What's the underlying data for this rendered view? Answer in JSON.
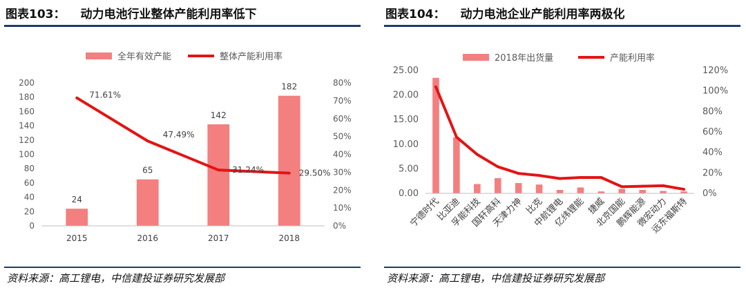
{
  "left_panel": {
    "fig_num": "图表103：",
    "fig_title": "动力电池行业整体产能利用率低下",
    "source": "资料来源：高工锂电，中信建投证券研究发展部"
  },
  "right_panel": {
    "fig_num": "图表104：",
    "fig_title": "动力电池企业产能利用率两极化",
    "source": "资料来源：高工锂电，中信建投证券研究发展部"
  },
  "colors": {
    "bar": "#f47f7f",
    "line": "#e31414",
    "axis": "#bfbfbf",
    "rule": "#1d3a6b"
  },
  "chart_data": [
    {
      "type": "bar",
      "categories": [
        "2015",
        "2016",
        "2017",
        "2018"
      ],
      "series": [
        {
          "name": "全年有效产能",
          "type": "bar",
          "axis": "left",
          "values": [
            24,
            65,
            142,
            182
          ],
          "labels": [
            "24",
            "65",
            "142",
            "182"
          ]
        },
        {
          "name": "整体产能利用率",
          "type": "line",
          "axis": "right",
          "values": [
            71.61,
            47.49,
            31.24,
            29.5
          ],
          "labels": [
            "71.61%",
            "47.49%",
            "31.24%",
            "29.50%"
          ]
        }
      ],
      "y_left": {
        "min": 0,
        "max": 200,
        "ticks": [
          "0",
          "20",
          "40",
          "60",
          "80",
          "100",
          "120",
          "140",
          "160",
          "180",
          "200"
        ]
      },
      "y_right": {
        "min": 0,
        "max": 80,
        "ticks": [
          "0%",
          "10%",
          "20%",
          "30%",
          "40%",
          "50%",
          "60%",
          "70%",
          "80%"
        ]
      },
      "legend": "top-center",
      "grid": false
    },
    {
      "type": "bar",
      "categories": [
        "宁德时代",
        "比亚迪",
        "孚能科技",
        "国轩高科",
        "天津力神",
        "比克",
        "中航锂电",
        "亿纬锂能",
        "捷威",
        "北京国能",
        "鹏辉能源",
        "微宏动力",
        "远东福斯特"
      ],
      "series": [
        {
          "name": "2018年出货量",
          "type": "bar",
          "axis": "left",
          "values": [
            23.5,
            11.4,
            1.9,
            3.1,
            2.1,
            1.8,
            0.7,
            1.2,
            0.4,
            0.9,
            0.7,
            0.5,
            0.4
          ]
        },
        {
          "name": "产能利用率",
          "type": "line",
          "axis": "right",
          "values": [
            104,
            55,
            38,
            26,
            19.5,
            17.5,
            14.5,
            15.5,
            15.5,
            6.5,
            7,
            7.5,
            4
          ]
        }
      ],
      "y_left": {
        "min": 0,
        "max": 25,
        "ticks": [
          "0.00",
          "5.00",
          "10.00",
          "15.00",
          "20.00",
          "25.00"
        ]
      },
      "y_right": {
        "min": 0,
        "max": 120,
        "ticks": [
          "0%",
          "20%",
          "40%",
          "60%",
          "80%",
          "100%",
          "120%"
        ]
      },
      "legend": "top-center",
      "grid": false
    }
  ]
}
